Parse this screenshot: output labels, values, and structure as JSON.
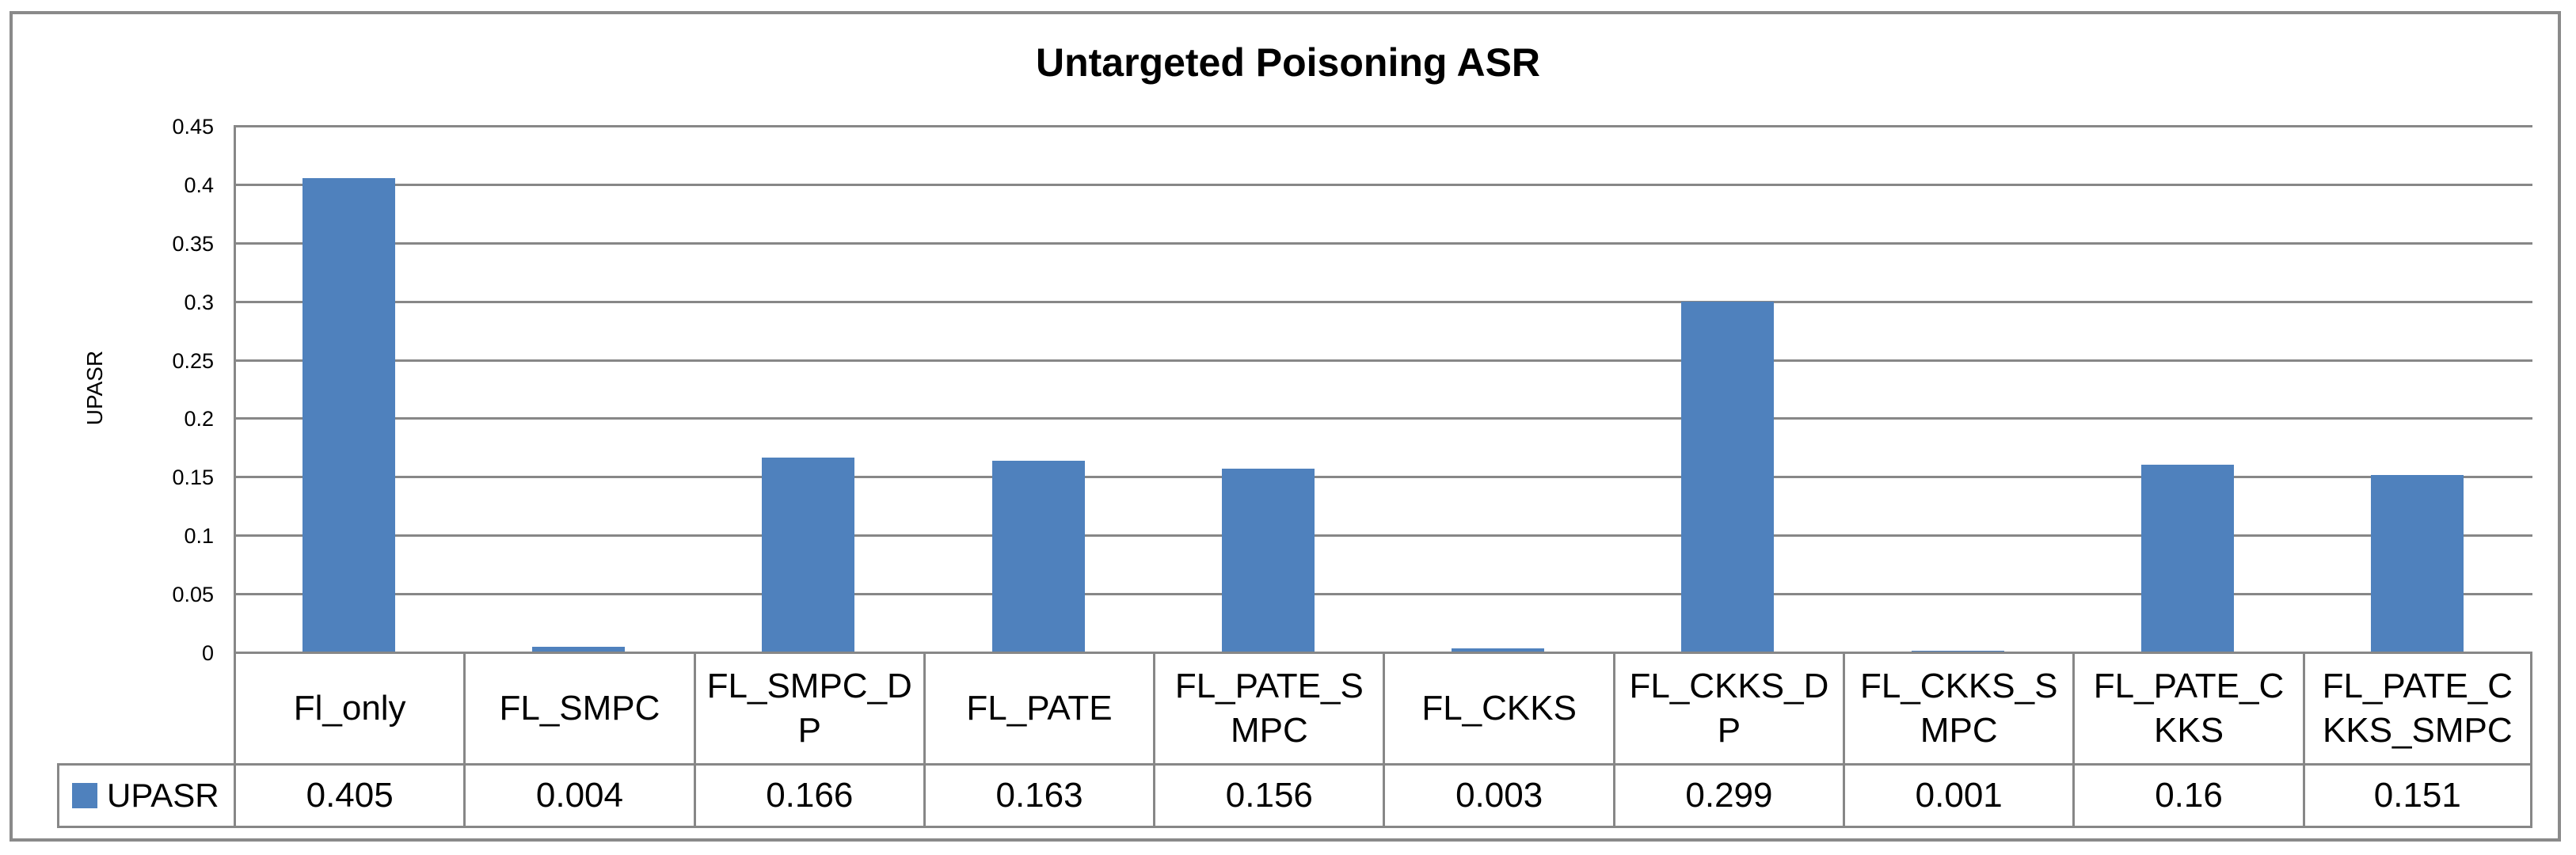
{
  "chart_data": {
    "type": "bar",
    "title": "Untargeted Poisoning ASR",
    "ylabel": "UPASR",
    "series": [
      {
        "name": "UPASR",
        "values": [
          0.405,
          0.004,
          0.166,
          0.163,
          0.156,
          0.003,
          0.299,
          0.001,
          0.16,
          0.151
        ]
      }
    ],
    "categories": [
      "Fl_only",
      "FL_SMPC",
      "FL_SMPC_DP",
      "FL_PATE",
      "FL_PATE_SMPC",
      "FL_CKKS",
      "FL_CKKS_DP",
      "FL_CKKS_SMPC",
      "FL_PATE_CKKS",
      "FL_PATE_CKKS_SMPC"
    ],
    "category_label_lines": [
      [
        "Fl_only"
      ],
      [
        "FL_SMPC"
      ],
      [
        "FL_SMPC_D",
        "P"
      ],
      [
        "FL_PATE"
      ],
      [
        "FL_PATE_S",
        "MPC"
      ],
      [
        "FL_CKKS"
      ],
      [
        "FL_CKKS_D",
        "P"
      ],
      [
        "FL_CKKS_S",
        "MPC"
      ],
      [
        "FL_PATE_C",
        "KKS"
      ],
      [
        "FL_PATE_C",
        "KKS_SMPC"
      ]
    ],
    "value_labels": [
      "0.405",
      "0.004",
      "0.166",
      "0.163",
      "0.156",
      "0.003",
      "0.299",
      "0.001",
      "0.16",
      "0.151"
    ],
    "ylim": [
      0,
      0.45
    ],
    "ytick_labels": [
      "0.45",
      "0.4",
      "0.35",
      "0.3",
      "0.25",
      "0.2",
      "0.15",
      "0.1",
      "0.05",
      "0"
    ],
    "grid": true,
    "legend_position": "bottom-table-left",
    "colors": {
      "bar": "#4f81bd",
      "gridline": "#878787",
      "border": "#8a8a8a",
      "text": "#000000"
    }
  },
  "legend": {
    "label": "UPASR",
    "swatch_color": "#4f81bd"
  }
}
